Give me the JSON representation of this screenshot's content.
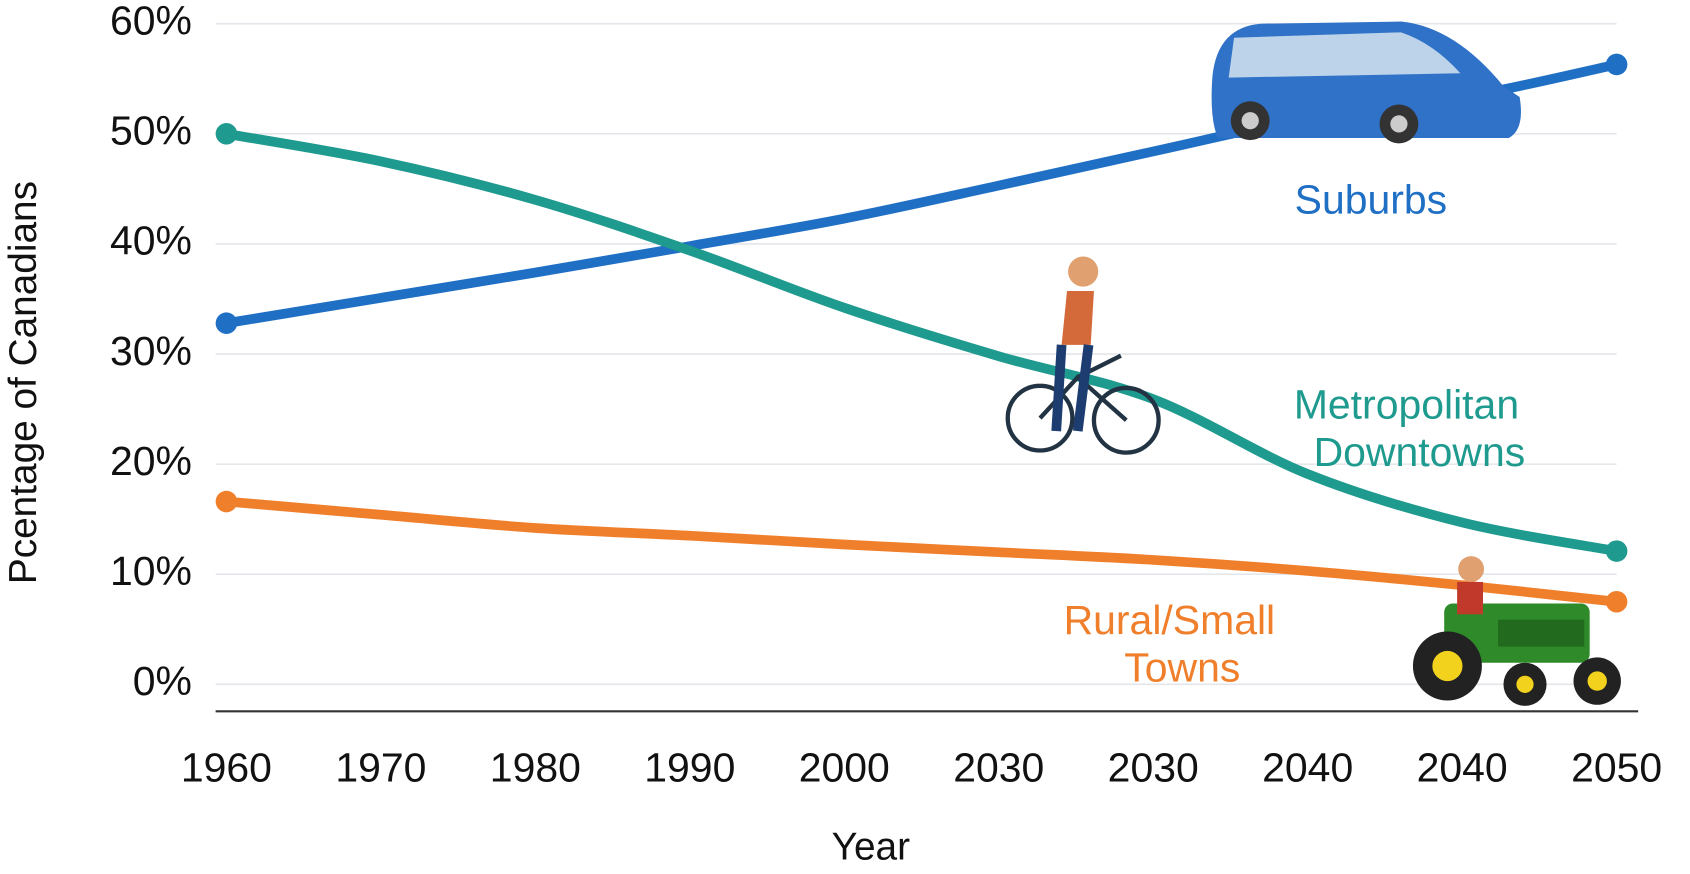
{
  "chart_data": {
    "type": "line",
    "y_label": "Pcentage of Canadians",
    "x_label": "Year",
    "categories": [
      "1960",
      "1970",
      "1980",
      "1990",
      "2000",
      "2030",
      "2030",
      "2040",
      "2040",
      "2050"
    ],
    "series": [
      {
        "name": "Suburbs",
        "color": "#1f6fc5",
        "values": [
          32.8,
          35.1,
          37.4,
          39.8,
          42.3,
          45.3,
          48.4,
          51.4,
          53.3,
          56.3
        ]
      },
      {
        "name": "Metropolitan Downtowns",
        "color": "#1e9a8e",
        "values": [
          50,
          47.5,
          44,
          39.4,
          34.2,
          29.8,
          25.9,
          19.1,
          14.7,
          12.1
        ]
      },
      {
        "name": "Rural/Small Towns",
        "color": "#f07f2c",
        "values": [
          16.6,
          15.4,
          14.2,
          13.5,
          12.7,
          12.0,
          11.3,
          10.3,
          9.0,
          7.5
        ]
      }
    ],
    "ylim": [
      0,
      60
    ],
    "yticks": [
      {
        "value": 0,
        "label": "0%"
      },
      {
        "value": 10,
        "label": "10%"
      },
      {
        "value": 20,
        "label": "20%"
      },
      {
        "value": 30,
        "label": "30%"
      },
      {
        "value": 40,
        "label": "40%"
      },
      {
        "value": 50,
        "label": "50%"
      },
      {
        "value": 60,
        "label": "60%"
      }
    ],
    "grid": true
  }
}
